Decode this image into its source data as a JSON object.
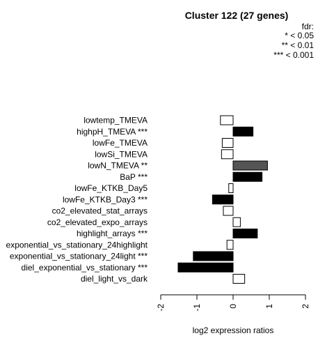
{
  "chart_data": {
    "type": "bar",
    "orientation": "horizontal",
    "title": "Cluster 122 (27 genes)",
    "xlabel": "log2 expression ratios",
    "xlim": [
      -2,
      2
    ],
    "xticks": [
      "-2",
      "-1",
      "0",
      "1",
      "2"
    ],
    "legend": {
      "title": "fdr:",
      "entries": [
        "* < 0.05",
        "** < 0.01",
        "*** < 0.001"
      ],
      "position": "top-right"
    },
    "categories": [
      "lowtemp_TMEVA",
      "highpH_TMEVA ***",
      "lowFe_TMEVA",
      "lowSi_TMEVA",
      "lowN_TMEVA **",
      "BaP ***",
      "lowFe_KTKB_Day5",
      "lowFe_KTKB_Day3 ***",
      "co2_elevated_stat_arrays",
      "co2_elevated_expo_arrays",
      "highlight_arrays ***",
      "exponential_vs_stationary_24highlight",
      "exponential_vs_stationary_24light ***",
      "diel_exponential_vs_stationary ***",
      "diel_light_vs_dark"
    ],
    "values": [
      -0.35,
      0.55,
      -0.3,
      -0.32,
      0.95,
      0.8,
      -0.12,
      -0.57,
      -0.27,
      0.2,
      0.67,
      -0.17,
      -1.1,
      -1.52,
      0.32
    ],
    "significance": [
      "",
      "***",
      "",
      "",
      "**",
      "***",
      "",
      "***",
      "",
      "",
      "***",
      "",
      "***",
      "***",
      ""
    ],
    "colors": {
      "***": "#000000",
      "**": "#555555",
      "*": "#aaaaaa",
      "": "#ffffff"
    }
  }
}
